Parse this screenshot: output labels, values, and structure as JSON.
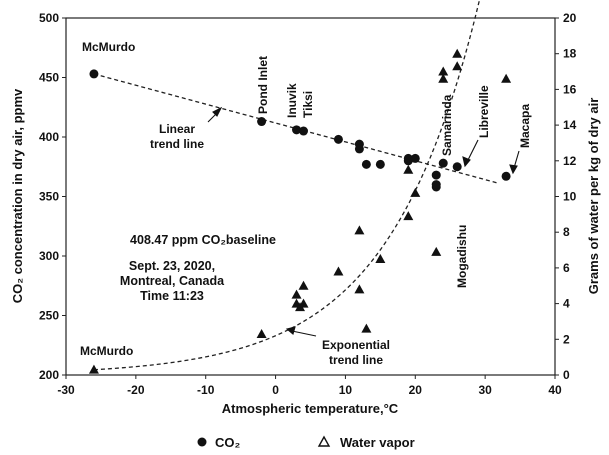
{
  "chart_data": {
    "type": "scatter",
    "title": "",
    "xlabel": "Atmospheric temperature,°C",
    "ylabel_left": "CO₂ concentration in dry air, ppmv",
    "ylabel_right": "Grams of water per kg of dry air",
    "xlim": [
      -30,
      40
    ],
    "ylim_left": [
      200,
      500
    ],
    "ylim_right": [
      0,
      20
    ],
    "x_ticks": [
      "-30",
      "-20",
      "-10",
      "0",
      "10",
      "20",
      "30",
      "40"
    ],
    "y_left_ticks": [
      "200",
      "250",
      "300",
      "350",
      "400",
      "450",
      "500"
    ],
    "y_right_ticks": [
      "0",
      "2",
      "4",
      "6",
      "8",
      "10",
      "12",
      "14",
      "16",
      "18",
      "20"
    ],
    "grid": false,
    "legend_position": "bottom",
    "legend": [
      {
        "marker": "circle",
        "label": "CO₂"
      },
      {
        "marker": "triangle",
        "label": "Water vapor"
      }
    ],
    "series": [
      {
        "name": "CO₂",
        "axis": "left",
        "marker": "circle",
        "points": [
          [
            -26,
            453
          ],
          [
            -2,
            413
          ],
          [
            3,
            406
          ],
          [
            4,
            405
          ],
          [
            9,
            398
          ],
          [
            12,
            394
          ],
          [
            12,
            390
          ],
          [
            13,
            377
          ],
          [
            15,
            377
          ],
          [
            19,
            380
          ],
          [
            19,
            382
          ],
          [
            20,
            382
          ],
          [
            23,
            368
          ],
          [
            23,
            358
          ],
          [
            23,
            360
          ],
          [
            24,
            378
          ],
          [
            26,
            375
          ],
          [
            33,
            367
          ]
        ]
      },
      {
        "name": "Water vapor",
        "axis": "right",
        "marker": "triangle",
        "points": [
          [
            -26,
            0.3
          ],
          [
            -2,
            2.3
          ],
          [
            3,
            4.0
          ],
          [
            3,
            4.5
          ],
          [
            3.5,
            3.8
          ],
          [
            4,
            4.0
          ],
          [
            4,
            5.0
          ],
          [
            9,
            5.8
          ],
          [
            12,
            8.1
          ],
          [
            12,
            4.8
          ],
          [
            13,
            2.6
          ],
          [
            15,
            6.5
          ],
          [
            19,
            8.9
          ],
          [
            19,
            11.5
          ],
          [
            20,
            10.2
          ],
          [
            23,
            6.9
          ],
          [
            24,
            16.6
          ],
          [
            24,
            17.0
          ],
          [
            26,
            18.0
          ],
          [
            26,
            17.3
          ],
          [
            33,
            16.6
          ]
        ]
      }
    ],
    "trend_lines": [
      {
        "label": "Linear trend line",
        "axis": "left",
        "kind": "linear",
        "x": [
          -26,
          32
        ],
        "y": [
          453,
          361
        ]
      },
      {
        "label": "Exponential trend line",
        "axis": "right",
        "kind": "exponential",
        "x_start": -26,
        "x_end": 30.6,
        "a": 2.2,
        "b": 0.0773
      }
    ],
    "annotations": {
      "mcmurdo_top": "McMurdo",
      "mcmurdo_bottom": "McMurdo",
      "pond_inlet": "Pond Inlet",
      "inuvik": "Inuvik",
      "tiksi": "Tiksi",
      "samarinda": "Samarinda",
      "libreville": "Libreville",
      "macapa": "Macapa",
      "mogadishu": "Mogadishu",
      "linear_line1": "Linear",
      "linear_line2": "trend line",
      "exp_line1": "Exponential",
      "exp_line2": "trend line"
    },
    "info": {
      "baseline": "408.47 ppm CO₂baseline",
      "date": "Sept. 23, 2020,",
      "place": "Montreal, Canada",
      "time": "Time 11:23"
    }
  }
}
